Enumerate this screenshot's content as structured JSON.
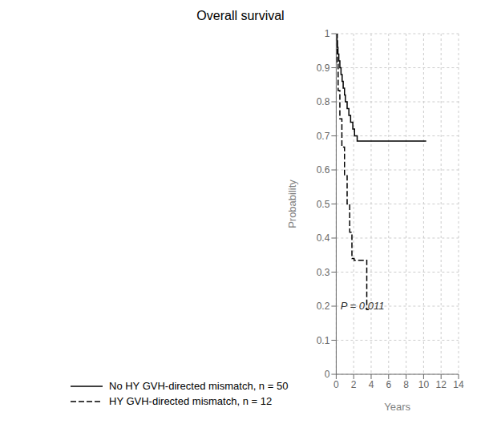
{
  "chart_data": {
    "type": "line",
    "title": "Overall survival",
    "x_label": "Years",
    "y_label": "Probability",
    "xlim": [
      0,
      14
    ],
    "ylim": [
      0,
      1.0
    ],
    "xticks": [
      0,
      2,
      4,
      6,
      8,
      10,
      12,
      14
    ],
    "yticks": [
      0,
      0.1,
      0.2,
      0.3,
      0.4,
      0.5,
      0.6,
      0.7,
      0.8,
      0.9,
      1
    ],
    "grid": true,
    "legend": "bottom",
    "annotations": [
      {
        "text": "P = 0.011",
        "x": 0.5,
        "y": 0.19
      }
    ],
    "series": [
      {
        "name": "No HY GVH-directed mismatch, n = 50",
        "color": "#000000",
        "line_style": "solid",
        "x": [
          0,
          0.08,
          0.08,
          0.13,
          0.13,
          0.2,
          0.2,
          0.3,
          0.3,
          0.42,
          0.42,
          0.55,
          0.55,
          0.68,
          0.68,
          0.8,
          0.8,
          0.95,
          0.95,
          1.05,
          1.05,
          1.25,
          1.25,
          1.45,
          1.45,
          1.65,
          1.65,
          1.9,
          1.9,
          2.1,
          2.1,
          2.4,
          2.4,
          10.3
        ],
        "values": [
          1.0,
          1.0,
          0.98,
          0.98,
          0.96,
          0.96,
          0.94,
          0.94,
          0.92,
          0.92,
          0.9,
          0.9,
          0.88,
          0.88,
          0.86,
          0.86,
          0.84,
          0.84,
          0.82,
          0.82,
          0.8,
          0.8,
          0.78,
          0.78,
          0.76,
          0.76,
          0.74,
          0.74,
          0.72,
          0.72,
          0.7,
          0.7,
          0.685,
          0.685
        ]
      },
      {
        "name": "HY GVH-directed mismatch, n = 12",
        "color": "#000000",
        "line_style": "dashed",
        "x": [
          0,
          0.12,
          0.12,
          0.22,
          0.22,
          0.42,
          0.42,
          0.65,
          0.65,
          0.95,
          0.95,
          1.25,
          1.25,
          1.55,
          1.55,
          1.8,
          1.8,
          2.05,
          2.05,
          3.5,
          3.5,
          3.72
        ],
        "values": [
          1.0,
          1.0,
          0.917,
          0.917,
          0.833,
          0.833,
          0.75,
          0.75,
          0.667,
          0.667,
          0.583,
          0.583,
          0.5,
          0.5,
          0.417,
          0.417,
          0.34,
          0.34,
          0.335,
          0.335,
          0.19,
          0.19
        ]
      }
    ]
  }
}
